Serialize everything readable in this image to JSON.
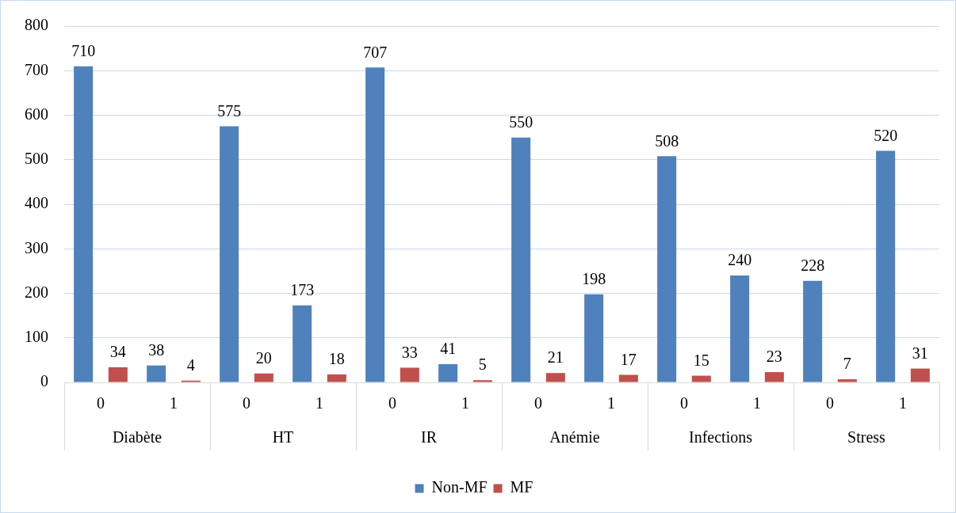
{
  "chart_data": {
    "type": "bar",
    "categories": [
      "0",
      "1",
      "0",
      "1",
      "0",
      "1",
      "0",
      "1",
      "0",
      "1",
      "0",
      "1"
    ],
    "series": [
      {
        "name": "Non-MF",
        "color": "#4f81bd",
        "values": [
          710,
          38,
          575,
          173,
          707,
          41,
          550,
          198,
          508,
          240,
          228,
          520
        ]
      },
      {
        "name": "MF",
        "color": "#c0504d",
        "values": [
          34,
          4,
          20,
          18,
          33,
          5,
          21,
          17,
          15,
          23,
          7,
          31
        ]
      }
    ],
    "annotations": [
      "Diabète",
      "HT",
      "IR",
      "Anémie",
      "Infections",
      "Stress"
    ],
    "ylim": [
      0,
      800
    ],
    "yticks": [
      0,
      100,
      200,
      300,
      400,
      500,
      600,
      700,
      800
    ],
    "grid": "y",
    "legend": "bottom",
    "data_labels": true
  }
}
